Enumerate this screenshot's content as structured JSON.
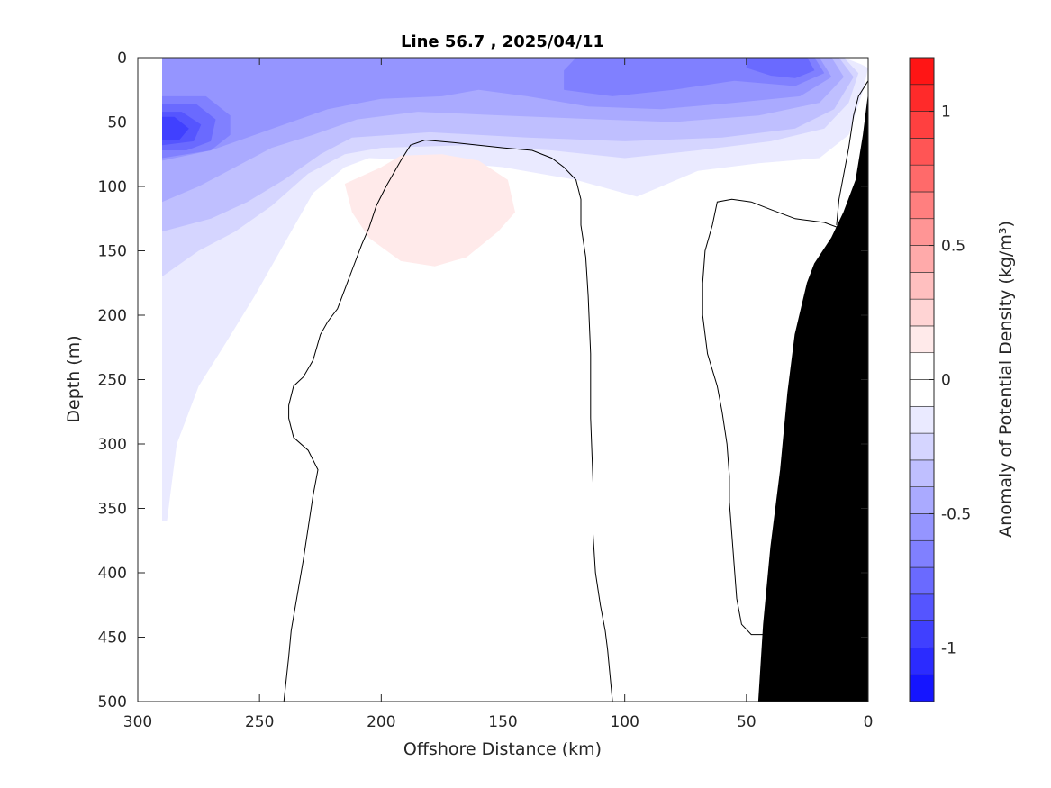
{
  "chart_data": {
    "type": "heatmap",
    "title": "Line 56.7 , 2025/04/11",
    "xlabel": "Offshore Distance (km)",
    "ylabel": "Depth (m)",
    "colorbar_label": "Anomaly of Potential Density (kg/m³)",
    "x_axis": {
      "min": 0,
      "max": 300,
      "reversed": true,
      "ticks": [
        {
          "value": 300,
          "label": "300"
        },
        {
          "value": 250,
          "label": "250"
        },
        {
          "value": 200,
          "label": "200"
        },
        {
          "value": 150,
          "label": "150"
        },
        {
          "value": 100,
          "label": "100"
        },
        {
          "value": 50,
          "label": "50"
        },
        {
          "value": 0,
          "label": "0"
        }
      ]
    },
    "y_axis": {
      "min": 0,
      "max": 500,
      "reversed": true,
      "ticks": [
        {
          "value": 0,
          "label": "0"
        },
        {
          "value": 50,
          "label": "50"
        },
        {
          "value": 100,
          "label": "100"
        },
        {
          "value": 150,
          "label": "150"
        },
        {
          "value": 200,
          "label": "200"
        },
        {
          "value": 250,
          "label": "250"
        },
        {
          "value": 300,
          "label": "300"
        },
        {
          "value": 350,
          "label": "350"
        },
        {
          "value": 400,
          "label": "400"
        },
        {
          "value": 450,
          "label": "450"
        },
        {
          "value": 500,
          "label": "500"
        }
      ]
    },
    "colorbar": {
      "min": -1.2,
      "max": 1.2,
      "step": 0.1,
      "low_color": "#0000ff",
      "mid_color": "#ffffff",
      "high_color": "#ff0000",
      "ticks": [
        {
          "value": 1,
          "label": "1"
        },
        {
          "value": 0.5,
          "label": "0.5"
        },
        {
          "value": 0,
          "label": "0"
        },
        {
          "value": -0.5,
          "label": "-0.5"
        },
        {
          "value": -1,
          "label": "-1"
        }
      ]
    },
    "filled_regions": [
      {
        "level": -0.1,
        "points": [
          [
            290,
            0
          ],
          [
            10,
            0
          ],
          [
            3,
            5
          ],
          [
            0,
            8
          ],
          [
            2,
            25
          ],
          [
            8,
            60
          ],
          [
            20,
            78
          ],
          [
            45,
            82
          ],
          [
            70,
            88
          ],
          [
            85,
            100
          ],
          [
            95,
            108
          ],
          [
            120,
            95
          ],
          [
            150,
            85
          ],
          [
            180,
            80
          ],
          [
            205,
            78
          ],
          [
            215,
            85
          ],
          [
            228,
            105
          ],
          [
            240,
            145
          ],
          [
            252,
            185
          ],
          [
            265,
            225
          ],
          [
            275,
            255
          ],
          [
            284,
            300
          ],
          [
            286,
            330
          ],
          [
            288,
            360
          ],
          [
            290,
            360
          ]
        ]
      },
      {
        "level": -0.2,
        "points": [
          [
            290,
            0
          ],
          [
            10,
            0
          ],
          [
            4,
            12
          ],
          [
            8,
            35
          ],
          [
            18,
            55
          ],
          [
            40,
            65
          ],
          [
            70,
            72
          ],
          [
            100,
            78
          ],
          [
            130,
            72
          ],
          [
            165,
            68
          ],
          [
            200,
            70
          ],
          [
            215,
            75
          ],
          [
            230,
            90
          ],
          [
            245,
            115
          ],
          [
            260,
            135
          ],
          [
            275,
            150
          ],
          [
            290,
            170
          ]
        ]
      },
      {
        "level": -0.3,
        "points": [
          [
            290,
            0
          ],
          [
            12,
            0
          ],
          [
            6,
            15
          ],
          [
            14,
            40
          ],
          [
            30,
            55
          ],
          [
            60,
            62
          ],
          [
            100,
            65
          ],
          [
            140,
            62
          ],
          [
            180,
            58
          ],
          [
            212,
            62
          ],
          [
            225,
            75
          ],
          [
            240,
            95
          ],
          [
            255,
            112
          ],
          [
            270,
            125
          ],
          [
            290,
            135
          ]
        ]
      },
      {
        "level": -0.4,
        "points": [
          [
            290,
            0
          ],
          [
            15,
            0
          ],
          [
            10,
            15
          ],
          [
            20,
            35
          ],
          [
            45,
            45
          ],
          [
            80,
            50
          ],
          [
            110,
            48
          ],
          [
            150,
            45
          ],
          [
            185,
            42
          ],
          [
            210,
            48
          ],
          [
            228,
            60
          ],
          [
            245,
            70
          ],
          [
            260,
            85
          ],
          [
            275,
            100
          ],
          [
            290,
            112
          ]
        ]
      },
      {
        "level": -0.5,
        "points": [
          [
            290,
            0
          ],
          [
            20,
            0
          ],
          [
            15,
            15
          ],
          [
            28,
            30
          ],
          [
            55,
            35
          ],
          [
            85,
            40
          ],
          [
            115,
            38
          ],
          [
            140,
            30
          ],
          [
            160,
            25
          ],
          [
            175,
            30
          ],
          [
            200,
            32
          ],
          [
            222,
            40
          ],
          [
            240,
            52
          ],
          [
            255,
            62
          ],
          [
            270,
            72
          ],
          [
            285,
            78
          ],
          [
            290,
            80
          ]
        ]
      },
      {
        "level": -0.6,
        "points": [
          [
            22,
            0
          ],
          [
            18,
            12
          ],
          [
            30,
            22
          ],
          [
            55,
            18
          ],
          [
            80,
            25
          ],
          [
            105,
            30
          ],
          [
            125,
            25
          ],
          [
            125,
            10
          ],
          [
            120,
            0
          ]
        ]
      },
      {
        "level": -0.6,
        "points": [
          [
            290,
            30
          ],
          [
            272,
            30
          ],
          [
            262,
            45
          ],
          [
            262,
            60
          ],
          [
            270,
            72
          ],
          [
            290,
            78
          ]
        ]
      },
      {
        "level": -0.7,
        "points": [
          [
            25,
            0
          ],
          [
            22,
            10
          ],
          [
            30,
            16
          ],
          [
            40,
            14
          ],
          [
            50,
            8
          ],
          [
            50,
            0
          ]
        ]
      },
      {
        "level": -0.7,
        "points": [
          [
            290,
            36
          ],
          [
            276,
            36
          ],
          [
            268,
            48
          ],
          [
            270,
            65
          ],
          [
            280,
            72
          ],
          [
            290,
            72
          ]
        ]
      },
      {
        "level": -0.8,
        "points": [
          [
            290,
            42
          ],
          [
            282,
            42
          ],
          [
            274,
            52
          ],
          [
            277,
            65
          ],
          [
            290,
            68
          ]
        ]
      },
      {
        "level": -0.9,
        "points": [
          [
            290,
            46
          ],
          [
            285,
            46
          ],
          [
            279,
            55
          ],
          [
            283,
            64
          ],
          [
            290,
            64
          ]
        ]
      },
      {
        "level": 0.1,
        "points": [
          [
            200,
            85
          ],
          [
            192,
            76
          ],
          [
            175,
            75
          ],
          [
            160,
            80
          ],
          [
            148,
            95
          ],
          [
            145,
            120
          ],
          [
            152,
            135
          ],
          [
            165,
            155
          ],
          [
            178,
            162
          ],
          [
            192,
            158
          ],
          [
            205,
            140
          ],
          [
            212,
            120
          ],
          [
            215,
            98
          ]
        ]
      }
    ],
    "contours_zero": [
      {
        "points": [
          [
            240,
            500
          ],
          [
            238,
            465
          ],
          [
            237,
            445
          ],
          [
            232,
            390
          ],
          [
            228,
            340
          ],
          [
            226,
            320
          ],
          [
            230,
            305
          ],
          [
            236,
            295
          ],
          [
            238,
            280
          ],
          [
            238,
            270
          ],
          [
            236,
            255
          ],
          [
            232,
            248
          ],
          [
            228,
            235
          ],
          [
            225,
            215
          ],
          [
            222,
            205
          ],
          [
            218,
            195
          ],
          [
            215,
            180
          ],
          [
            212,
            165
          ],
          [
            208,
            145
          ],
          [
            205,
            132
          ],
          [
            202,
            115
          ],
          [
            198,
            100
          ],
          [
            192,
            80
          ],
          [
            188,
            68
          ],
          [
            182,
            64
          ],
          [
            170,
            66
          ],
          [
            150,
            70
          ],
          [
            138,
            72
          ],
          [
            130,
            78
          ],
          [
            125,
            85
          ],
          [
            120,
            95
          ],
          [
            118,
            110
          ],
          [
            118,
            130
          ],
          [
            116,
            155
          ],
          [
            115,
            185
          ],
          [
            114,
            230
          ],
          [
            114,
            280
          ],
          [
            113,
            330
          ],
          [
            113,
            370
          ],
          [
            112,
            400
          ],
          [
            110,
            425
          ],
          [
            108,
            445
          ],
          [
            107,
            460
          ],
          [
            106,
            480
          ],
          [
            105,
            500
          ]
        ]
      },
      {
        "points": [
          [
            39,
            448
          ],
          [
            38,
            430
          ],
          [
            36,
            395
          ],
          [
            34,
            350
          ],
          [
            32,
            325
          ],
          [
            31,
            305
          ],
          [
            30,
            290
          ],
          [
            28,
            280
          ],
          [
            23,
            278
          ],
          [
            18,
            282
          ],
          [
            15,
            290
          ],
          [
            12,
            300
          ],
          [
            12,
            320
          ],
          [
            15,
            345
          ],
          [
            18,
            370
          ],
          [
            20,
            390
          ],
          [
            22,
            410
          ],
          [
            25,
            430
          ],
          [
            28,
            445
          ],
          [
            33,
            450
          ],
          [
            39,
            448
          ]
        ]
      },
      {
        "points": [
          [
            6,
            170
          ],
          [
            6,
            150
          ],
          [
            8,
            135
          ],
          [
            18,
            128
          ],
          [
            30,
            125
          ],
          [
            40,
            118
          ],
          [
            48,
            112
          ],
          [
            56,
            110
          ],
          [
            62,
            112
          ],
          [
            64,
            130
          ],
          [
            67,
            150
          ],
          [
            68,
            175
          ],
          [
            68,
            200
          ],
          [
            66,
            230
          ],
          [
            62,
            255
          ],
          [
            60,
            275
          ],
          [
            58,
            300
          ],
          [
            57,
            325
          ],
          [
            57,
            345
          ],
          [
            56,
            370
          ],
          [
            55,
            395
          ],
          [
            54,
            420
          ],
          [
            52,
            440
          ],
          [
            48,
            448
          ],
          [
            42,
            448
          ]
        ]
      },
      {
        "points": [
          [
            0,
            18
          ],
          [
            4,
            30
          ],
          [
            6,
            45
          ],
          [
            8,
            70
          ],
          [
            10,
            90
          ],
          [
            12,
            110
          ],
          [
            13,
            130
          ]
        ]
      }
    ],
    "land_polygon": [
      [
        0,
        30
      ],
      [
        2,
        60
      ],
      [
        5,
        95
      ],
      [
        10,
        120
      ],
      [
        15,
        140
      ],
      [
        22,
        160
      ],
      [
        25,
        175
      ],
      [
        30,
        215
      ],
      [
        33,
        260
      ],
      [
        36,
        320
      ],
      [
        40,
        380
      ],
      [
        43,
        440
      ],
      [
        45,
        500
      ],
      [
        0,
        500
      ]
    ]
  }
}
